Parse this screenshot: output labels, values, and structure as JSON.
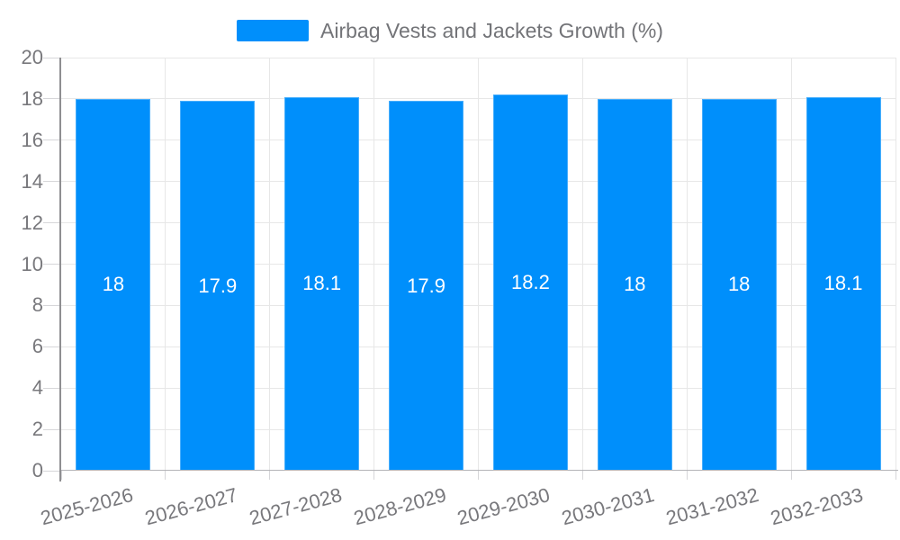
{
  "chart_data": {
    "type": "bar",
    "title": "Airbag Vests and Jackets Growth (%)",
    "legend": {
      "position": "top",
      "entries": [
        {
          "label": "Airbag Vests and Jackets Growth (%)",
          "color": "#008FFB"
        }
      ]
    },
    "categories": [
      "2025-2026",
      "2026-2027",
      "2027-2028",
      "2028-2029",
      "2029-2030",
      "2030-2031",
      "2031-2032",
      "2032-2033"
    ],
    "series": [
      {
        "name": "Airbag Vests and Jackets Growth (%)",
        "values": [
          18,
          17.9,
          18.1,
          17.9,
          18.2,
          18,
          18,
          18.1
        ]
      }
    ],
    "data_labels": [
      "18",
      "17.9",
      "18.1",
      "17.9",
      "18.2",
      "18",
      "18",
      "18.1"
    ],
    "xlabel": "",
    "ylabel": "",
    "ylim": [
      0,
      20
    ],
    "yticks": [
      0,
      2,
      4,
      6,
      8,
      10,
      12,
      14,
      16,
      18,
      20
    ],
    "ytick_labels": [
      "0",
      "2",
      "4",
      "6",
      "8",
      "10",
      "12",
      "14",
      "16",
      "18",
      "20"
    ],
    "grid": true,
    "colors": {
      "bar": "#008FFB",
      "data_label_text": "#ffffff",
      "axis_label_text": "#78787c",
      "legend_text": "#737478",
      "grid_line": "#e7e7e7",
      "axis_line": "#8e8e91",
      "background": "#ffffff"
    }
  }
}
